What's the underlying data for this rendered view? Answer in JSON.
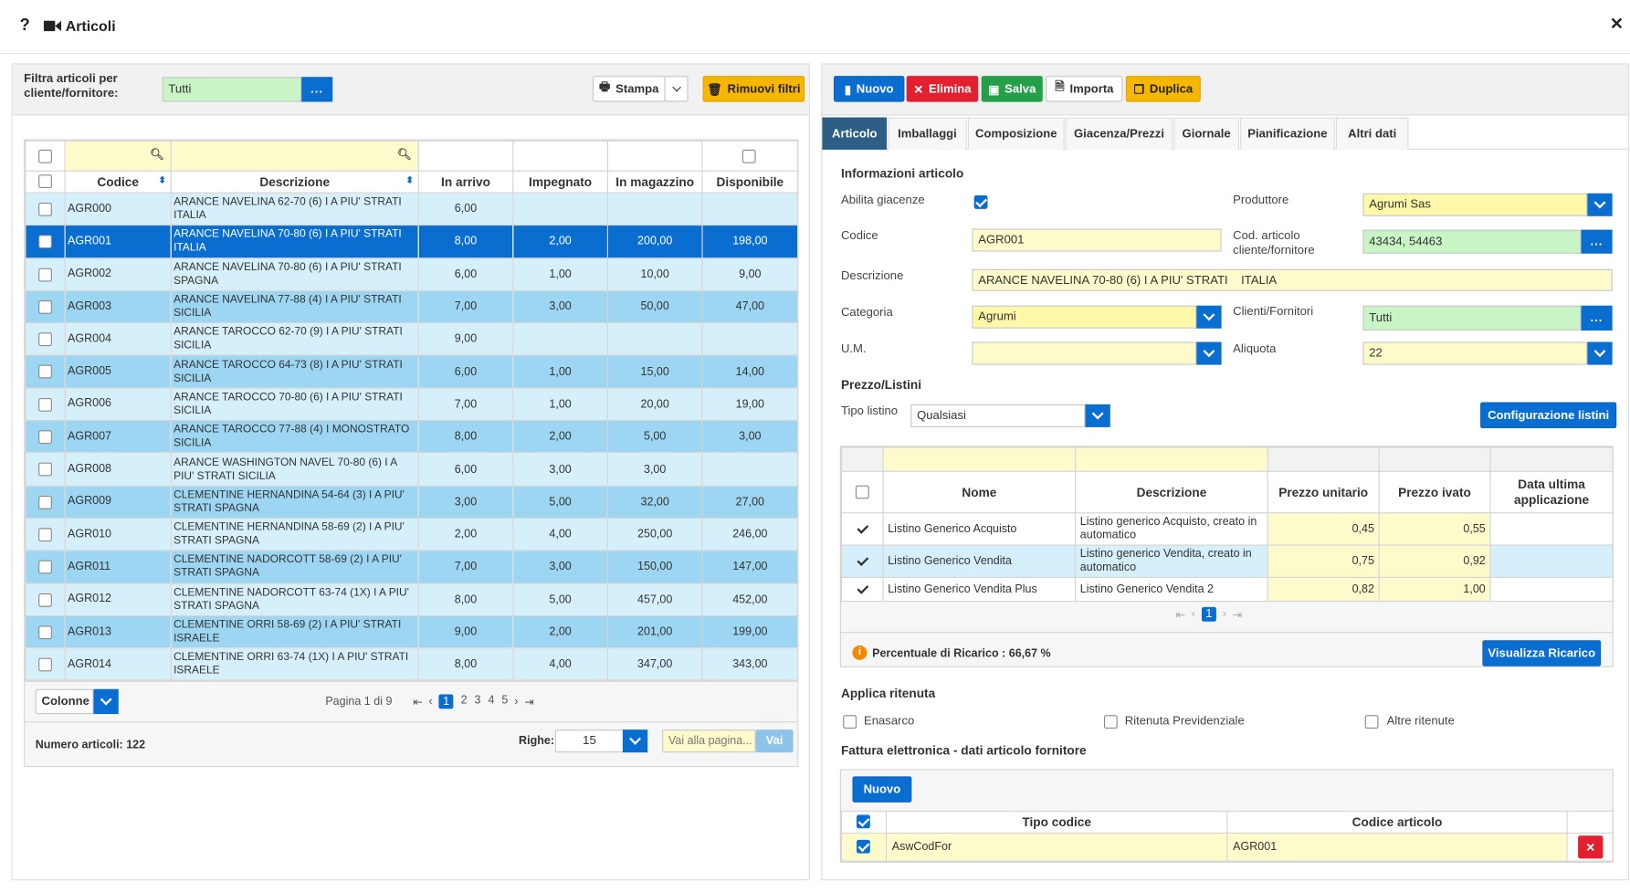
{
  "window": {
    "title": "Articoli"
  },
  "left": {
    "filter_label": "Filtra articoli per cliente/fornitore:",
    "filter_value": "Tutti",
    "print_label": "Stampa",
    "remove_filters_label": "Rimuovi filtri",
    "columns": [
      "Codice",
      "Descrizione",
      "In arrivo",
      "Impegnato",
      "In magazzino",
      "Disponibile"
    ],
    "rows": [
      {
        "code": "AGR000",
        "desc": "ARANCE NAVELINA 62-70 (6) I A PIU' STRATI ITALIA",
        "arr": "6,00",
        "imp": "",
        "mag": "",
        "disp": ""
      },
      {
        "code": "AGR001",
        "desc": "ARANCE NAVELINA 70-80 (6) I A PIU' STRATI ITALIA",
        "arr": "8,00",
        "imp": "2,00",
        "mag": "200,00",
        "disp": "198,00"
      },
      {
        "code": "AGR002",
        "desc": "ARANCE NAVELINA 70-80 (6) I A PIU' STRATI SPAGNA",
        "arr": "6,00",
        "imp": "1,00",
        "mag": "10,00",
        "disp": "9,00"
      },
      {
        "code": "AGR003",
        "desc": "ARANCE NAVELINA 77-88 (4) I A PIU' STRATI SICILIA",
        "arr": "7,00",
        "imp": "3,00",
        "mag": "50,00",
        "disp": "47,00"
      },
      {
        "code": "AGR004",
        "desc": "ARANCE TAROCCO 62-70 (9) I A PIU' STRATI SICILIA",
        "arr": "9,00",
        "imp": "",
        "mag": "",
        "disp": ""
      },
      {
        "code": "AGR005",
        "desc": "ARANCE TAROCCO 64-73 (8) I A PIU' STRATI SICILIA",
        "arr": "6,00",
        "imp": "1,00",
        "mag": "15,00",
        "disp": "14,00"
      },
      {
        "code": "AGR006",
        "desc": "ARANCE TAROCCO 70-80 (6) I A PIU' STRATI SICILIA",
        "arr": "7,00",
        "imp": "1,00",
        "mag": "20,00",
        "disp": "19,00"
      },
      {
        "code": "AGR007",
        "desc": "ARANCE TAROCCO 77-88 (4) I MONOSTRATO SICILIA",
        "arr": "8,00",
        "imp": "2,00",
        "mag": "5,00",
        "disp": "3,00"
      },
      {
        "code": "AGR008",
        "desc": "ARANCE WASHINGTON NAVEL 70-80 (6) I A PIU' STRATI SICILIA",
        "arr": "6,00",
        "imp": "3,00",
        "mag": "3,00",
        "disp": ""
      },
      {
        "code": "AGR009",
        "desc": "CLEMENTINE HERNANDINA 54-64 (3) I A PIU' STRATI SPAGNA",
        "arr": "3,00",
        "imp": "5,00",
        "mag": "32,00",
        "disp": "27,00"
      },
      {
        "code": "AGR010",
        "desc": "CLEMENTINE HERNANDINA 58-69 (2) I A PIU' STRATI SPAGNA",
        "arr": "2,00",
        "imp": "4,00",
        "mag": "250,00",
        "disp": "246,00"
      },
      {
        "code": "AGR011",
        "desc": "CLEMENTINE NADORCOTT 58-69 (2) I A PIU' STRATI SPAGNA",
        "arr": "7,00",
        "imp": "3,00",
        "mag": "150,00",
        "disp": "147,00"
      },
      {
        "code": "AGR012",
        "desc": "CLEMENTINE NADORCOTT 63-74 (1X) I A PIU' STRATI SPAGNA",
        "arr": "8,00",
        "imp": "5,00",
        "mag": "457,00",
        "disp": "452,00"
      },
      {
        "code": "AGR013",
        "desc": "CLEMENTINE ORRI 58-69 (2) I A PIU' STRATI ISRAELE",
        "arr": "9,00",
        "imp": "2,00",
        "mag": "201,00",
        "disp": "199,00"
      },
      {
        "code": "AGR014",
        "desc": "CLEMENTINE ORRI 63-74 (1X) I A PIU' STRATI ISRAELE",
        "arr": "8,00",
        "imp": "4,00",
        "mag": "347,00",
        "disp": "343,00"
      }
    ],
    "columns_btn": "Colonne",
    "page_info": "Pagina 1 di 9",
    "pages": [
      "1",
      "2",
      "3",
      "4",
      "5"
    ],
    "count_label": "Numero articoli: 122",
    "rows_label": "Righe:",
    "rows_value": "15",
    "goto_placeholder": "Vai alla pagina...",
    "goto_btn": "Vai"
  },
  "toolbar": {
    "new": "Nuovo",
    "delete": "Elimina",
    "save": "Salva",
    "import": "Importa",
    "duplicate": "Duplica"
  },
  "tabs": [
    "Articolo",
    "Imballaggi",
    "Composizione",
    "Giacenza/Prezzi",
    "Giornale",
    "Pianificazione",
    "Altri dati"
  ],
  "form": {
    "section_info": "Informazioni articolo",
    "abilita_label": "Abilita giacenze",
    "produttore_label": "Produttore",
    "produttore_value": "Agrumi Sas",
    "codice_label": "Codice",
    "codice_value": "AGR001",
    "codart_label": "Cod. articolo cliente/fornitore",
    "codart_value": "43434, 54463",
    "descr_label": "Descrizione",
    "descr_value": "ARANCE NAVELINA 70-80 (6) I A PIU' STRATI    ITALIA",
    "categoria_label": "Categoria",
    "categoria_value": "Agrumi",
    "clienti_label": "Clienti/Fornitori",
    "clienti_value": "Tutti",
    "um_label": "U.M.",
    "um_value": "",
    "aliquota_label": "Aliquota",
    "aliquota_value": "22",
    "section_prezzo": "Prezzo/Listini",
    "tipo_listino_label": "Tipo listino",
    "tipo_listino_value": "Qualsiasi",
    "config_btn": "Configurazione listini",
    "listini_columns": [
      "Nome",
      "Descrizione",
      "Prezzo unitario",
      "Prezzo ivato",
      "Data ultima applicazione"
    ],
    "listini_rows": [
      {
        "nome": "Listino Generico Acquisto",
        "desc": "Listino generico Acquisto, creato in automatico",
        "pu": "0,45",
        "pi": "0,55",
        "data": ""
      },
      {
        "nome": "Listino Generico Vendita",
        "desc": "Listino generico Vendita, creato in automatico",
        "pu": "0,75",
        "pi": "0,92",
        "data": ""
      },
      {
        "nome": "Listino Generico Vendita Plus",
        "desc": "Listino Generico Vendita 2",
        "pu": "0,82",
        "pi": "1,00",
        "data": ""
      }
    ],
    "listini_page": "1",
    "ricarico_text": "Percentuale di Ricarico : 66,67 %",
    "ricarico_btn": "Visualizza Ricarico",
    "section_ritenuta": "Applica ritenuta",
    "enasarco": "Enasarco",
    "ritenuta_prev": "Ritenuta Previdenziale",
    "altre_ritenute": "Altre ritenute",
    "section_fattura": "Fattura elettronica - dati articolo fornitore",
    "fattura_new": "Nuovo",
    "fattura_columns": [
      "Tipo codice",
      "Codice articolo"
    ],
    "fattura_row": {
      "tipo": "AswCodFor",
      "codice": "AGR001"
    }
  },
  "colors": {
    "accent": "#0a6ed1",
    "selected_row": "#0a6ed1",
    "row_light": "#d6f0fb",
    "row_mid": "#9dd6f3",
    "danger": "#e2202f",
    "success": "#24a148",
    "warning": "#f7b600"
  }
}
